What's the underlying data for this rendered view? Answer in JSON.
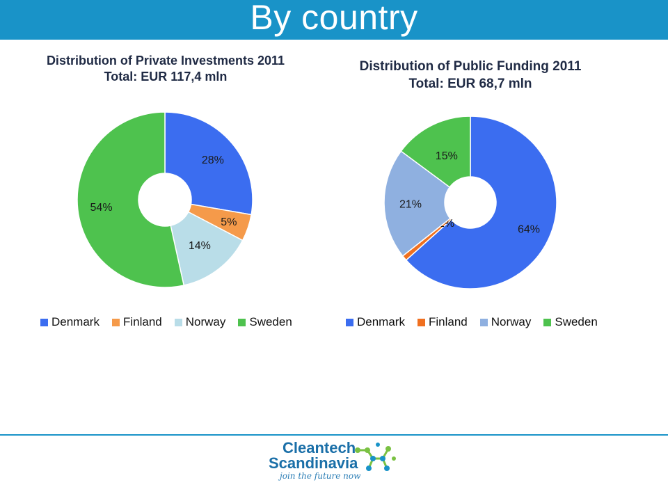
{
  "page": {
    "title": "By country"
  },
  "chart_data": [
    {
      "type": "pie",
      "title": "Distribution of Private Investments 2011",
      "subtitle": "Total: EUR 117,4 mln",
      "categories": [
        "Denmark",
        "Finland",
        "Norway",
        "Sweden"
      ],
      "values": [
        28,
        5,
        14,
        54
      ],
      "value_labels": [
        "28%",
        "5%",
        "14%",
        "54%"
      ],
      "colors": [
        "#3b6df0",
        "#f59a4a",
        "#b9dde8",
        "#4ec24e"
      ],
      "legend": "bottom"
    },
    {
      "type": "pie",
      "title": "Distribution of Public Funding 2011",
      "subtitle": "Total: EUR 68,7 mln",
      "categories": [
        "Denmark",
        "Finland",
        "Norway",
        "Sweden"
      ],
      "values": [
        64,
        1,
        21,
        15
      ],
      "value_labels": [
        "64%",
        "1%",
        "21%",
        "15%"
      ],
      "colors": [
        "#3b6df0",
        "#f07020",
        "#8fb0e0",
        "#4ec24e"
      ],
      "legend": "bottom"
    }
  ],
  "logo": {
    "name_line1": "Cleantech",
    "name_line2": "Scandinavia",
    "tagline": "join the future now"
  }
}
